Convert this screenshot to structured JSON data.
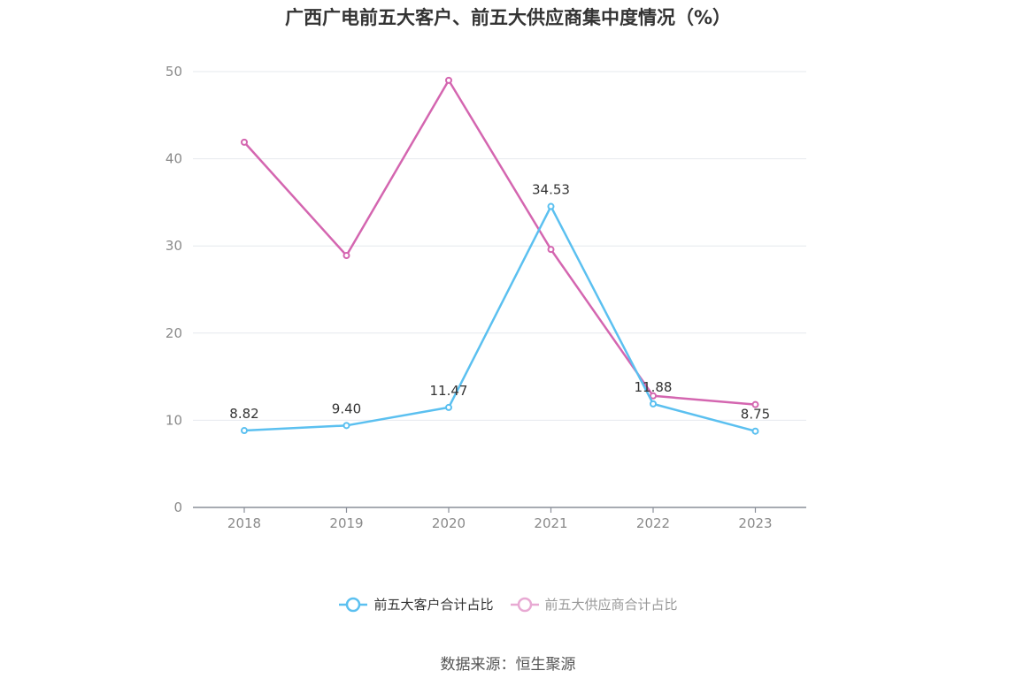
{
  "chart_data": {
    "type": "line",
    "title": "广西广电前五大客户、前五大供应商集中度情况（%）",
    "categories": [
      "2018",
      "2019",
      "2020",
      "2021",
      "2022",
      "2023"
    ],
    "ylim": [
      0,
      50
    ],
    "yticks": [
      "0",
      "10",
      "20",
      "30",
      "40",
      "50"
    ],
    "grid": true,
    "legend_position": "bottom",
    "series": [
      {
        "name": "前五大客户合计占比",
        "color": "#5bc0f0",
        "values": [
          8.82,
          9.4,
          11.47,
          34.53,
          11.88,
          8.75
        ],
        "labels": [
          "8.82",
          "9.40",
          "11.47",
          "34.53",
          "11.88",
          "8.75"
        ]
      },
      {
        "name": "前五大供应商合计占比",
        "color": "#d466b0",
        "values": [
          41.9,
          28.9,
          49.0,
          29.6,
          12.8,
          11.8
        ]
      }
    ],
    "source": "数据来源：恒生聚源"
  }
}
